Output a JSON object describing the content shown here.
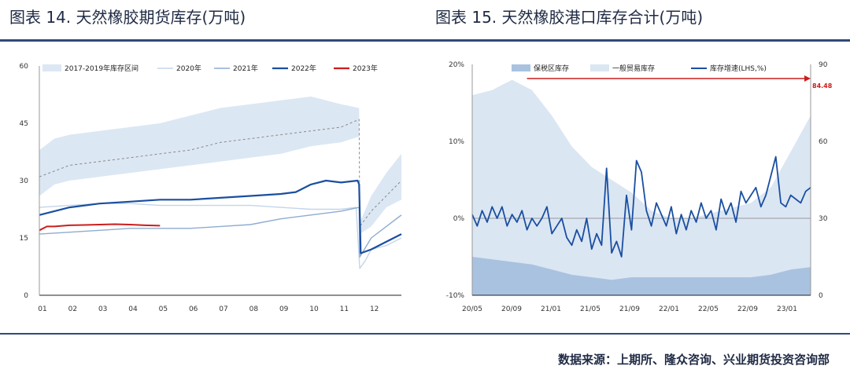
{
  "figure_titles": {
    "left": "图表 14. 天然橡胶期货库存(万吨)",
    "right": "图表 15. 天然橡胶港口库存合计(万吨)"
  },
  "source_note": "数据来源：上期所、隆众咨询、兴业期货投资咨询部",
  "chart_data": [
    {
      "type": "line",
      "title": "",
      "y_ticks": [
        "0",
        "15",
        "30",
        "45",
        "60"
      ],
      "ylim": [
        0,
        60
      ],
      "x_ticks": [
        "01",
        "02",
        "03",
        "04",
        "05",
        "06",
        "07",
        "08",
        "09",
        "10",
        "11",
        "12"
      ],
      "xlim": [
        1,
        13
      ],
      "legend": [
        "2017-2019年库存区间",
        "2020年",
        "2021年",
        "2022年",
        "2023年"
      ],
      "legend_position": "top",
      "band_2017_2019": {
        "x": [
          1,
          1.5,
          2,
          3,
          4,
          5,
          6,
          7,
          8,
          9,
          10,
          11,
          11.6,
          11.62,
          12,
          12.5,
          13
        ],
        "lower": [
          26,
          29,
          30,
          31,
          32,
          33,
          34,
          35,
          36,
          37,
          39,
          40,
          41.5,
          16,
          18,
          23,
          25
        ],
        "upper": [
          38,
          41,
          42,
          43,
          44,
          45,
          47,
          49,
          50,
          51,
          52,
          50,
          49,
          19,
          26,
          32,
          37
        ]
      },
      "series": [
        {
          "name": "2017-2019均值",
          "style": "dashed",
          "color": "#888888",
          "x": [
            1,
            2,
            3,
            4,
            5,
            6,
            7,
            8,
            9,
            10,
            11,
            11.6,
            11.62,
            12,
            12.5,
            13
          ],
          "y": [
            31,
            34,
            35,
            36,
            37,
            38,
            40,
            41,
            42,
            43,
            44,
            46,
            18,
            22,
            26,
            30
          ]
        },
        {
          "name": "2020年",
          "color": "#c3d5ea",
          "x": [
            1,
            2,
            3,
            4,
            5,
            6,
            7,
            8,
            9,
            10,
            11,
            11.5,
            11.62,
            11.8,
            12,
            12.5,
            13
          ],
          "y": [
            23,
            23.5,
            24,
            24,
            23.5,
            23.5,
            23.5,
            23.5,
            23,
            22.5,
            22.5,
            23,
            7,
            9,
            12,
            13,
            15
          ]
        },
        {
          "name": "2021年",
          "color": "#8eacd0",
          "x": [
            1,
            2,
            3,
            4,
            5,
            6,
            7,
            8,
            9,
            10,
            11,
            11.6,
            11.62,
            12,
            12.5,
            13
          ],
          "y": [
            16,
            16.5,
            17,
            17.5,
            17.5,
            17.5,
            18,
            18.5,
            20,
            21,
            22,
            23,
            10,
            15,
            18,
            21
          ]
        },
        {
          "name": "2022年",
          "color": "#1a4fa0",
          "x": [
            1,
            1.5,
            2,
            3,
            4,
            5,
            6,
            7,
            8,
            9,
            9.5,
            10,
            10.5,
            11,
            11.55,
            11.6,
            11.65,
            12,
            12.5,
            13
          ],
          "y": [
            21,
            22,
            23,
            24,
            24.5,
            25,
            25,
            25.5,
            26,
            26.5,
            27,
            29,
            30,
            29.5,
            30,
            29,
            11,
            12,
            14,
            16
          ]
        },
        {
          "name": "2023年",
          "color": "#cc1d1d",
          "x": [
            1,
            1.25,
            1.5,
            2,
            2.5,
            3,
            3.5,
            4,
            4.5,
            5
          ],
          "y": [
            17,
            18,
            18,
            18.3,
            18.4,
            18.5,
            18.6,
            18.5,
            18.3,
            18.2
          ]
        }
      ]
    },
    {
      "type": "area",
      "title": "",
      "y_left_ticks": [
        "-10%",
        "0%",
        "10%",
        "20%"
      ],
      "y_left_lim": [
        -10,
        20
      ],
      "y_right_ticks": [
        "0",
        "30",
        "60",
        "90"
      ],
      "y_right_lim": [
        0,
        90
      ],
      "x_ticks": [
        "20/05",
        "20/09",
        "21/01",
        "21/05",
        "21/09",
        "22/01",
        "22/05",
        "22/09",
        "23/01"
      ],
      "legend": [
        "保税区库存",
        "一般贸易库存",
        "库存增速(LHS,%)"
      ],
      "legend_position": "top",
      "annotation": "84.48",
      "annotation_color": "#cc1d1d",
      "series": [
        {
          "name": "保税区库存",
          "axis": "right",
          "kind": "area",
          "color": "#a9c2e0",
          "x": [
            0,
            2,
            4,
            6,
            8,
            10,
            12,
            14,
            16,
            18,
            20,
            22,
            24,
            26,
            28,
            30,
            32,
            34
          ],
          "y": [
            15,
            14,
            13,
            12,
            10,
            8,
            7,
            6,
            7,
            7,
            7,
            7,
            7,
            7,
            7,
            8,
            10,
            11
          ]
        },
        {
          "name": "一般贸易库存",
          "axis": "right",
          "kind": "area",
          "color": "#dbe6f3",
          "x": [
            0,
            2,
            4,
            6,
            8,
            10,
            12,
            14,
            16,
            18,
            20,
            22,
            24,
            26,
            28,
            30,
            32,
            34
          ],
          "y": [
            78,
            80,
            84,
            80,
            70,
            58,
            50,
            45,
            40,
            33,
            30,
            30,
            32,
            34,
            36,
            42,
            56,
            70
          ]
        },
        {
          "name": "库存增速(LHS,%)",
          "axis": "left",
          "kind": "line",
          "color": "#1a4fa0",
          "x": [
            0,
            0.5,
            1,
            1.5,
            2,
            2.5,
            3,
            3.5,
            4,
            4.5,
            5,
            5.5,
            6,
            6.5,
            7,
            7.5,
            8,
            8.5,
            9,
            9.5,
            10,
            10.5,
            11,
            11.5,
            12,
            12.5,
            13,
            13.5,
            14,
            14.5,
            15,
            15.5,
            16,
            16.5,
            17,
            17.5,
            18,
            18.5,
            19,
            19.5,
            20,
            20.5,
            21,
            21.5,
            22,
            22.5,
            23,
            23.5,
            24,
            24.5,
            25,
            25.5,
            26,
            26.5,
            27,
            27.5,
            28,
            28.5,
            29,
            29.5,
            30,
            30.5,
            31,
            31.5,
            32,
            32.5,
            33,
            33.5,
            34
          ],
          "y": [
            0.5,
            -1,
            1,
            -0.5,
            1.5,
            0,
            1.5,
            -1,
            0.5,
            -0.5,
            1,
            -1.5,
            0,
            -1,
            0,
            1.5,
            -2,
            -1,
            0,
            -2.5,
            -3.5,
            -1.5,
            -3,
            0,
            -4,
            -2,
            -3.5,
            6.5,
            -4.5,
            -3,
            -5,
            3,
            -1.5,
            7.5,
            6,
            1,
            -1,
            2,
            0.5,
            -1,
            1.5,
            -2,
            0.5,
            -1.5,
            1,
            -0.5,
            2,
            0,
            1,
            -1.5,
            2.5,
            0.5,
            2,
            -0.5,
            3.5,
            2,
            3,
            4,
            1.5,
            3,
            5.5,
            8,
            2,
            1.5,
            3,
            2.5,
            2,
            3.5,
            4
          ]
        }
      ]
    }
  ]
}
